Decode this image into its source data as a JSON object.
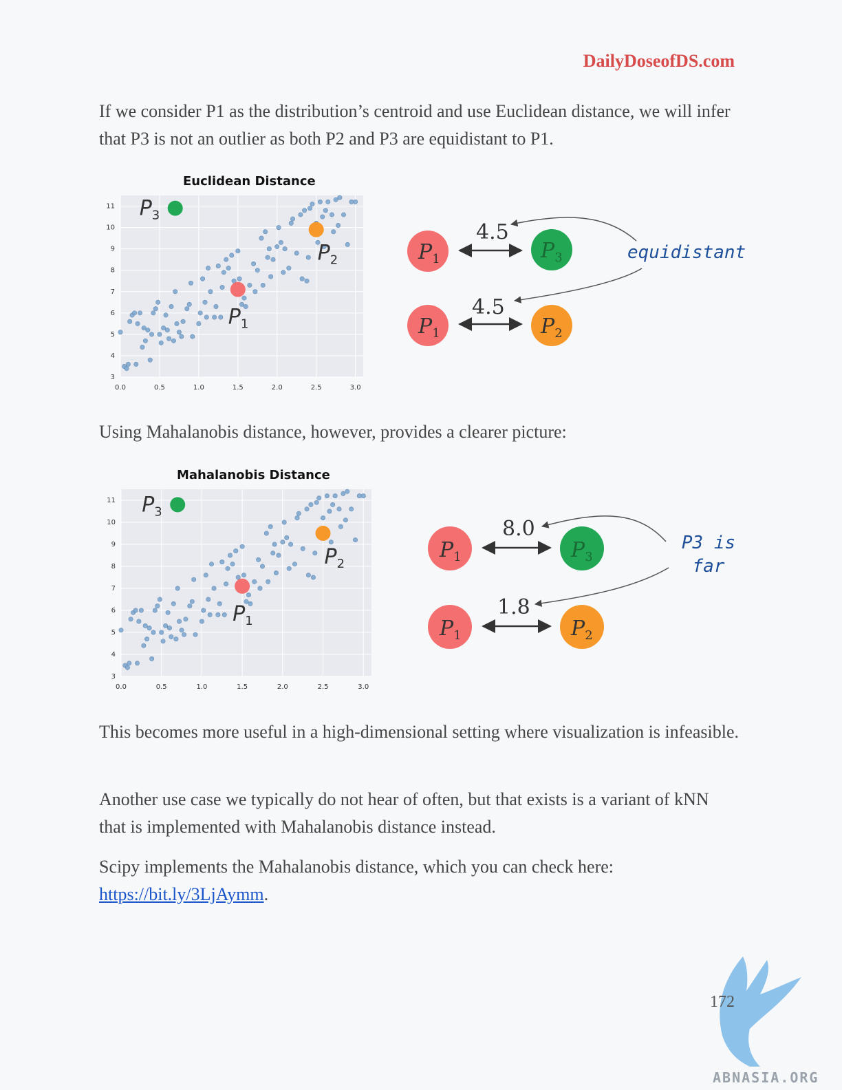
{
  "header": {
    "brand": "DailyDoseofDS.com"
  },
  "paragraphs": {
    "p1": "If we consider P1 as the distribution’s centroid and use Euclidean distance, we will infer that P3 is not an outlier as both P2 and P3 are equidistant to P1.",
    "p2": "Using Mahalanobis distance, however, provides a clearer picture:",
    "p3": "This becomes more useful in a high-dimensional setting where visualization is infeasible.",
    "p4": "Another use case we typically do not hear of often, but that exists is a variant of kNN that is implemented with Mahalanobis distance instead.",
    "p5_text": "Scipy implements the Mahalanobis distance, which you can check here: ",
    "p5_link": "https://bit.ly/3LjAymm",
    "p5_end": "."
  },
  "figure1": {
    "title": "Euclidean Distance",
    "dist_p3": "4.5",
    "dist_p2": "4.5",
    "annotation": "equidistant"
  },
  "figure2": {
    "title": "Mahalanobis Distance",
    "dist_p3": "8.0",
    "dist_p2": "1.8",
    "annotation_line1": "P3 is",
    "annotation_line2": "far"
  },
  "labels": {
    "p1": "P",
    "p1_sub": "1",
    "p2": "P",
    "p2_sub": "2",
    "p3": "P",
    "p3_sub": "3"
  },
  "colors": {
    "p1": "#f47070",
    "p2": "#f7992a",
    "p3": "#22a855",
    "scatter": "#7fa8cf",
    "plot_bg": "#e8eaf0"
  },
  "chart_data": [
    {
      "type": "scatter",
      "title": "Euclidean Distance",
      "xlim": [
        0,
        3.1
      ],
      "ylim": [
        3,
        11.5
      ],
      "xticks": [
        "0.0",
        "0.5",
        "1.0",
        "1.5",
        "2.0",
        "2.5",
        "3.0"
      ],
      "yticks": [
        "3",
        "4",
        "5",
        "6",
        "7",
        "8",
        "9",
        "10",
        "11"
      ],
      "grid": true,
      "highlight_points": [
        {
          "name": "P1",
          "x": 1.5,
          "y": 7.1,
          "color": "#f47070"
        },
        {
          "name": "P2",
          "x": 2.5,
          "y": 9.9,
          "color": "#f7992a"
        },
        {
          "name": "P3",
          "x": 0.7,
          "y": 10.9,
          "color": "#22a855"
        }
      ]
    },
    {
      "type": "scatter",
      "title": "Mahalanobis Distance",
      "xlim": [
        0,
        3.1
      ],
      "ylim": [
        3,
        11.5
      ],
      "xticks": [
        "0.0",
        "0.5",
        "1.0",
        "1.5",
        "2.0",
        "2.5",
        "3.0"
      ],
      "yticks": [
        "3",
        "4",
        "5",
        "6",
        "7",
        "8",
        "9",
        "10",
        "11"
      ],
      "grid": true,
      "highlight_points": [
        {
          "name": "P1",
          "x": 1.5,
          "y": 7.1,
          "color": "#f47070"
        },
        {
          "name": "P2",
          "x": 2.5,
          "y": 9.5,
          "color": "#f7992a"
        },
        {
          "name": "P3",
          "x": 0.7,
          "y": 10.8,
          "color": "#22a855"
        }
      ]
    }
  ],
  "scatter_points": [
    [
      0.0,
      5.1
    ],
    [
      0.05,
      3.5
    ],
    [
      0.08,
      3.4
    ],
    [
      0.1,
      3.6
    ],
    [
      0.12,
      5.6
    ],
    [
      0.15,
      5.9
    ],
    [
      0.18,
      6.0
    ],
    [
      0.2,
      3.6
    ],
    [
      0.22,
      5.5
    ],
    [
      0.25,
      6.0
    ],
    [
      0.28,
      4.4
    ],
    [
      0.3,
      5.3
    ],
    [
      0.32,
      4.7
    ],
    [
      0.35,
      5.2
    ],
    [
      0.38,
      3.8
    ],
    [
      0.4,
      5.0
    ],
    [
      0.42,
      6.0
    ],
    [
      0.45,
      6.2
    ],
    [
      0.48,
      6.5
    ],
    [
      0.5,
      5.0
    ],
    [
      0.52,
      4.6
    ],
    [
      0.55,
      5.3
    ],
    [
      0.58,
      5.9
    ],
    [
      0.6,
      5.2
    ],
    [
      0.62,
      4.8
    ],
    [
      0.65,
      6.3
    ],
    [
      0.68,
      4.7
    ],
    [
      0.7,
      7.0
    ],
    [
      0.72,
      5.5
    ],
    [
      0.75,
      5.1
    ],
    [
      0.78,
      4.9
    ],
    [
      0.8,
      5.6
    ],
    [
      0.85,
      6.2
    ],
    [
      0.88,
      6.4
    ],
    [
      0.9,
      7.4
    ],
    [
      0.92,
      4.9
    ],
    [
      1.0,
      5.5
    ],
    [
      1.02,
      6.0
    ],
    [
      1.05,
      7.6
    ],
    [
      1.08,
      6.5
    ],
    [
      1.1,
      5.8
    ],
    [
      1.12,
      8.1
    ],
    [
      1.15,
      7.0
    ],
    [
      1.2,
      5.8
    ],
    [
      1.22,
      6.3
    ],
    [
      1.25,
      8.2
    ],
    [
      1.28,
      5.8
    ],
    [
      1.3,
      7.2
    ],
    [
      1.32,
      7.9
    ],
    [
      1.35,
      8.5
    ],
    [
      1.38,
      8.1
    ],
    [
      1.42,
      8.7
    ],
    [
      1.45,
      7.5
    ],
    [
      1.5,
      8.9
    ],
    [
      1.52,
      7.6
    ],
    [
      1.55,
      6.4
    ],
    [
      1.58,
      6.7
    ],
    [
      1.6,
      6.3
    ],
    [
      1.65,
      7.3
    ],
    [
      1.7,
      8.3
    ],
    [
      1.72,
      7.0
    ],
    [
      1.75,
      8.0
    ],
    [
      1.8,
      9.5
    ],
    [
      1.82,
      7.3
    ],
    [
      1.85,
      9.8
    ],
    [
      1.88,
      8.6
    ],
    [
      1.9,
      9.0
    ],
    [
      1.92,
      7.7
    ],
    [
      1.95,
      8.5
    ],
    [
      2.0,
      9.1
    ],
    [
      2.02,
      10.0
    ],
    [
      2.05,
      9.3
    ],
    [
      2.08,
      7.9
    ],
    [
      2.1,
      9.0
    ],
    [
      2.15,
      8.1
    ],
    [
      2.18,
      10.2
    ],
    [
      2.2,
      10.4
    ],
    [
      2.25,
      8.8
    ],
    [
      2.3,
      10.6
    ],
    [
      2.32,
      7.6
    ],
    [
      2.35,
      10.8
    ],
    [
      2.38,
      7.5
    ],
    [
      2.4,
      8.6
    ],
    [
      2.42,
      10.9
    ],
    [
      2.45,
      11.1
    ],
    [
      2.5,
      10.2
    ],
    [
      2.52,
      9.3
    ],
    [
      2.55,
      11.2
    ],
    [
      2.58,
      10.5
    ],
    [
      2.6,
      9.1
    ],
    [
      2.62,
      10.8
    ],
    [
      2.65,
      11.2
    ],
    [
      2.7,
      10.6
    ],
    [
      2.72,
      9.8
    ],
    [
      2.75,
      11.3
    ],
    [
      2.78,
      10.1
    ],
    [
      2.8,
      11.4
    ],
    [
      2.85,
      10.6
    ],
    [
      2.9,
      9.2
    ],
    [
      2.95,
      11.2
    ],
    [
      3.0,
      11.2
    ]
  ]
}
